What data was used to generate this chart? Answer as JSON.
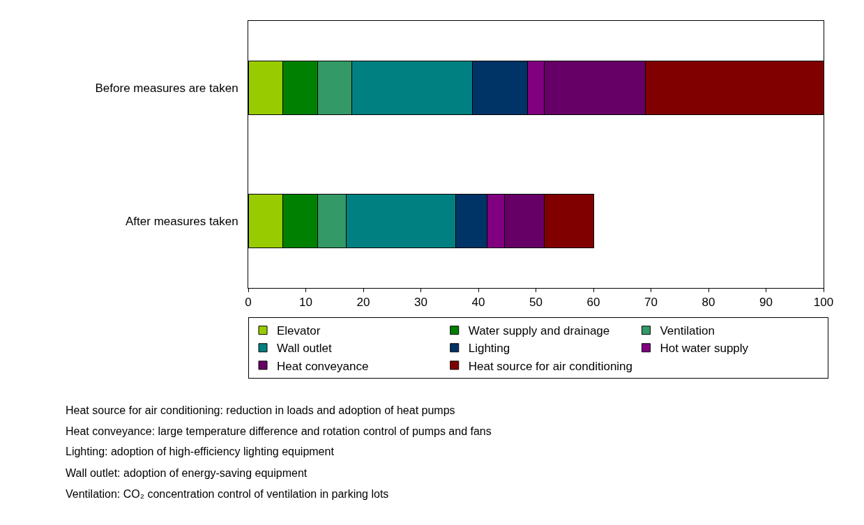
{
  "chart_data": {
    "type": "bar",
    "orientation": "horizontal",
    "stacked": true,
    "categories": [
      "Before measures are taken",
      "After measures taken"
    ],
    "series": [
      {
        "name": "Elevator",
        "color": "#99cc00",
        "values": [
          6,
          6
        ]
      },
      {
        "name": "Water supply and drainage",
        "color": "#008000",
        "values": [
          6,
          6
        ]
      },
      {
        "name": "Ventilation",
        "color": "#339966",
        "values": [
          6,
          5
        ]
      },
      {
        "name": "Wall outlet",
        "color": "#008080",
        "values": [
          21,
          19
        ]
      },
      {
        "name": "Lighting",
        "color": "#003366",
        "values": [
          9.5,
          5.5
        ]
      },
      {
        "name": "Hot water supply",
        "color": "#800080",
        "values": [
          3,
          3
        ]
      },
      {
        "name": "Heat conveyance",
        "color": "#660066",
        "values": [
          17.5,
          7
        ]
      },
      {
        "name": "Heat source for air conditioning",
        "color": "#800000",
        "values": [
          31,
          8.5
        ]
      }
    ],
    "xlim": [
      0,
      100
    ],
    "xticks": [
      0,
      10,
      20,
      30,
      40,
      50,
      60,
      70,
      80,
      90,
      100
    ],
    "grid": false,
    "legend": "bottom",
    "annotations": [
      "Heat source for air conditioning: reduction in loads and adoption of heat pumps",
      "Heat conveyance: large temperature difference and rotation control of pumps and fans",
      "Lighting: adoption of high-efficiency lighting equipment",
      "Wall outlet: adoption of energy-saving equipment",
      "Ventilation: CO₂ concentration control of ventilation in parking lots"
    ]
  }
}
